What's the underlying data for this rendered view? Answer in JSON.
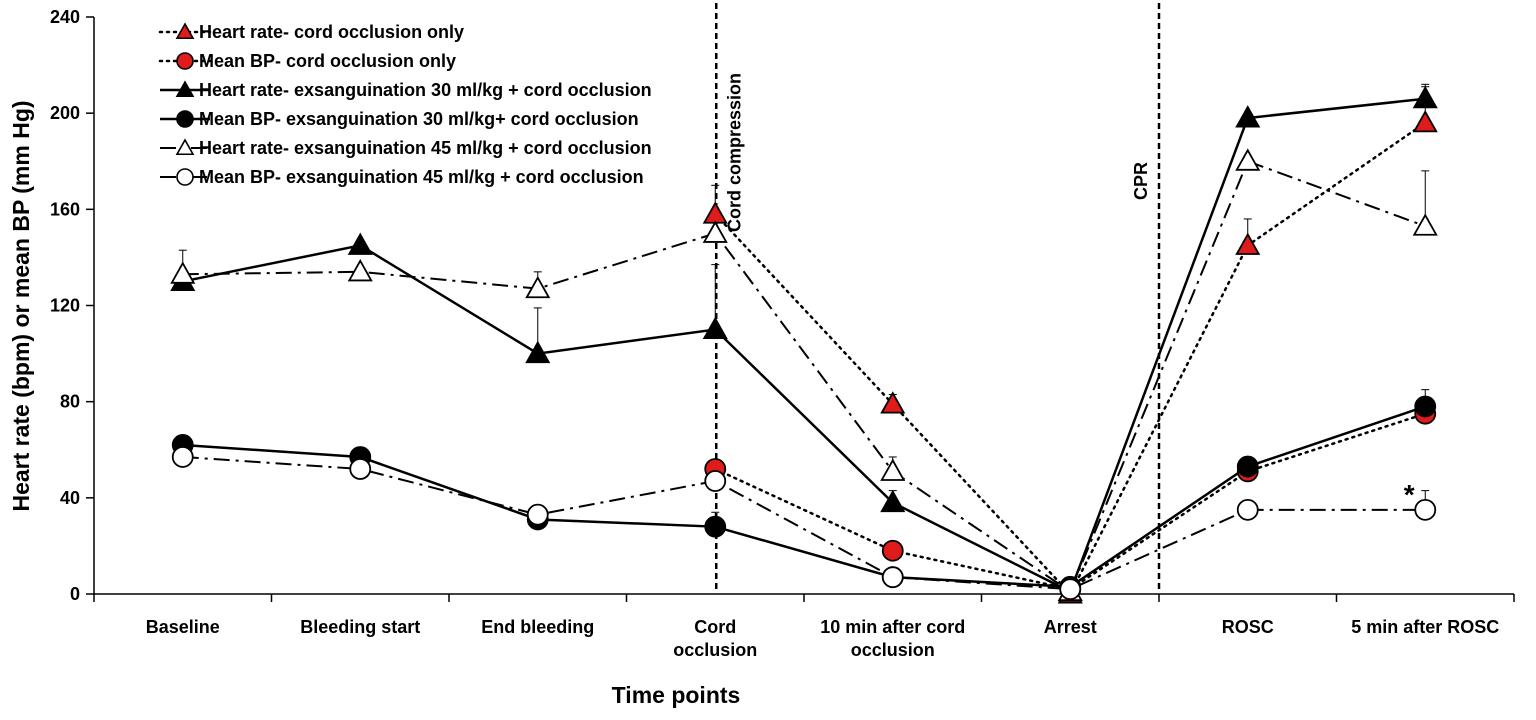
{
  "chart_data": {
    "type": "line",
    "xlabel": "Time points",
    "ylabel": "Heart rate (bpm) or mean BP (mm Hg)",
    "ylim": [
      0,
      240
    ],
    "yticks": [
      0,
      40,
      80,
      120,
      160,
      200,
      240
    ],
    "grid": false,
    "legend_position": "top-left",
    "categories": [
      [
        "Baseline"
      ],
      [
        "Bleeding start"
      ],
      [
        "End   bleeding"
      ],
      [
        "Cord",
        "occlusion"
      ],
      [
        "10 min after cord",
        "occlusion"
      ],
      [
        "Arrest"
      ],
      [
        "ROSC"
      ],
      [
        "5 min after ROSC"
      ]
    ],
    "series": [
      {
        "name": "Heart rate- cord occlusion only",
        "marker": "triangle",
        "fill": "#e01b1b",
        "dash": "dotted",
        "values": [
          null,
          null,
          null,
          158,
          79,
          0,
          145,
          196
        ],
        "errors": [
          null,
          null,
          null,
          12,
          4,
          null,
          11,
          16
        ]
      },
      {
        "name": "Mean BP- cord occlusion only",
        "marker": "circle",
        "fill": "#e01b1b",
        "dash": "dotted",
        "values": [
          null,
          null,
          null,
          52,
          18,
          2,
          51,
          75
        ],
        "errors": [
          null,
          null,
          null,
          null,
          null,
          null,
          6,
          10
        ]
      },
      {
        "name": "Heart rate- exsanguination 30 ml/kg + cord occlusion",
        "marker": "triangle",
        "fill": "#000000",
        "dash": "solid",
        "values": [
          130,
          145,
          100,
          110,
          38,
          1,
          198,
          206
        ],
        "errors": [
          null,
          null,
          19,
          27,
          5,
          null,
          null,
          5
        ]
      },
      {
        "name": "Mean BP- exsanguination 30 ml/kg+ cord occlusion",
        "marker": "circle",
        "fill": "#000000",
        "dash": "solid",
        "values": [
          62,
          57,
          31,
          28,
          7,
          3,
          53,
          78
        ],
        "errors": [
          null,
          null,
          6,
          6,
          null,
          null,
          null,
          null
        ]
      },
      {
        "name": "Heart rate- exsanguination 45 ml/kg + cord occlusion",
        "marker": "triangle",
        "fill": "#ffffff",
        "dash": "dashdot",
        "values": [
          133,
          134,
          127,
          150,
          51,
          1,
          180,
          153
        ],
        "errors": [
          10,
          null,
          7,
          null,
          6,
          null,
          null,
          23
        ]
      },
      {
        "name": "Mean BP- exsanguination 45 ml/kg + cord occlusion",
        "marker": "circle",
        "fill": "#ffffff",
        "dash": "dashdot",
        "values": [
          57,
          52,
          33,
          47,
          7,
          2,
          35,
          35
        ],
        "errors": [
          null,
          null,
          null,
          null,
          null,
          null,
          null,
          8
        ]
      }
    ],
    "annotations": {
      "cord_compression": "Cord compression",
      "cpr": "CPR",
      "significance": "*"
    }
  }
}
